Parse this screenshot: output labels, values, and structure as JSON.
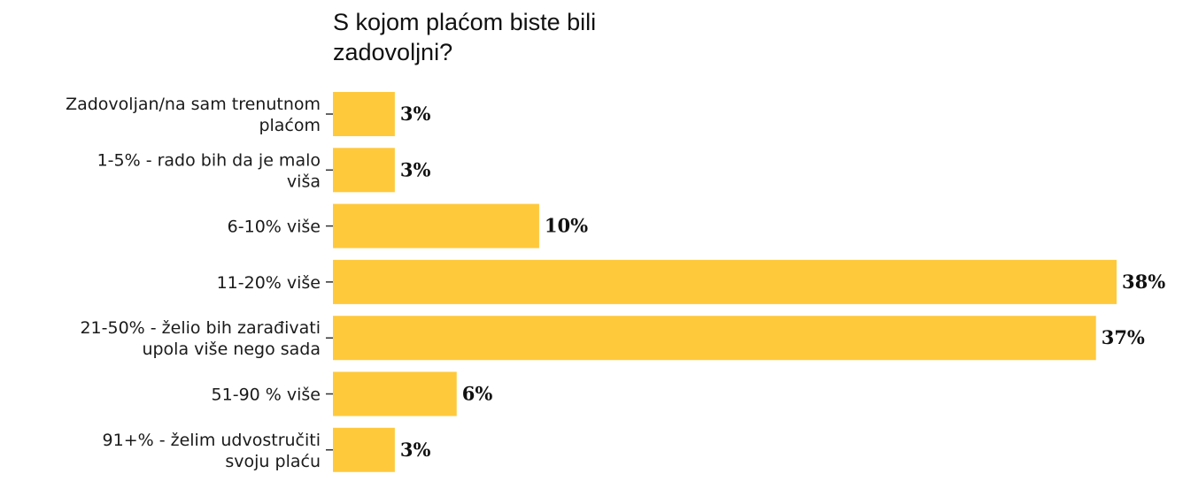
{
  "chart_data": {
    "type": "bar",
    "orientation": "horizontal",
    "title": "S kojom plaćom biste bili zadovoljni?",
    "categories": [
      [
        "Zadovoljan/na sam trenutnom",
        "plaćom"
      ],
      [
        "1-5% - rado bih da je malo",
        "viša"
      ],
      [
        "6-10% više"
      ],
      [
        "11-20% više"
      ],
      [
        "21-50% - želio bih zarađivati",
        "upola više nego sada"
      ],
      [
        "51-90 % više"
      ],
      [
        "91+% - želim udvostručiti",
        "svoju plaću"
      ]
    ],
    "values": [
      3,
      3,
      10,
      38,
      37,
      6,
      3
    ],
    "value_labels": [
      "3%",
      "3%",
      "10%",
      "38%",
      "37%",
      "6%",
      "3%"
    ],
    "xlim": [
      0,
      38
    ],
    "bar_color": "#FFC93C",
    "grid": false,
    "legend": "none"
  }
}
